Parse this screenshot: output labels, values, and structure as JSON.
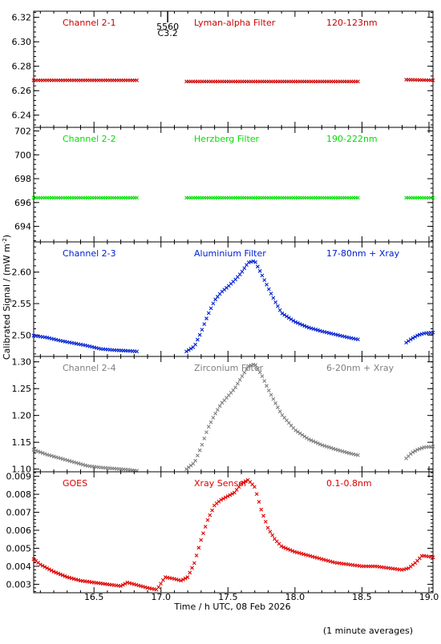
{
  "figure": {
    "xlabel": "Time / h UTC, 08 Feb 2026",
    "ylabel": "Calibrated Signal / (mW m",
    "ylabel_sup": "-2",
    "ylabel_close": ")",
    "footnote": "(1 minute averages)",
    "flare_marker": {
      "x": 17.05,
      "label_top": "5560",
      "label_bottom": "C3.2"
    }
  },
  "chart_data": [
    {
      "type": "scatter",
      "channel": "Channel 2-1",
      "filter": "Lyman-alpha Filter",
      "band": "120-123nm",
      "color": "#cc0000",
      "xlim": [
        16.05,
        19.03
      ],
      "ylim": [
        6.23,
        6.325
      ],
      "yticks": [
        6.24,
        6.26,
        6.28,
        6.3,
        6.32
      ],
      "ytick_labels": [
        "6.24",
        "6.26",
        "6.28",
        "6.30",
        "6.32"
      ],
      "series": [
        {
          "x": [
            16.05,
            16.82
          ],
          "y": [
            6.2685,
            6.2685
          ]
        },
        {
          "x": [
            17.19,
            18.47
          ],
          "y": [
            6.2675,
            6.2675
          ]
        },
        {
          "x": [
            18.83,
            19.03
          ],
          "y": [
            6.269,
            6.2685
          ]
        }
      ]
    },
    {
      "type": "scatter",
      "channel": "Channel 2-2",
      "filter": "Herzberg Filter",
      "band": "190-222nm",
      "color": "#00e000",
      "xlim": [
        16.05,
        19.03
      ],
      "ylim": [
        692.7,
        702.3
      ],
      "yticks": [
        694,
        696,
        698,
        700,
        702
      ],
      "ytick_labels": [
        "694",
        "696",
        "698",
        "700",
        "702"
      ],
      "series": [
        {
          "x": [
            16.05,
            16.82
          ],
          "y": [
            696.4,
            696.4
          ]
        },
        {
          "x": [
            17.19,
            18.47
          ],
          "y": [
            696.4,
            696.4
          ]
        },
        {
          "x": [
            18.83,
            19.03
          ],
          "y": [
            696.4,
            696.4
          ]
        }
      ]
    },
    {
      "type": "scatter",
      "channel": "Channel 2-3",
      "filter": "Aluminium Filter",
      "band": "17-80nm + Xray",
      "color": "#0020d0",
      "xlim": [
        16.05,
        19.03
      ],
      "ylim": [
        2.466,
        2.648
      ],
      "yticks": [
        2.5,
        2.55,
        2.6
      ],
      "ytick_labels": [
        "2.50",
        "2.55",
        "2.60"
      ],
      "series": [
        {
          "x": [
            16.05,
            16.15,
            16.25,
            16.35,
            16.45,
            16.55,
            16.65,
            16.75,
            16.82
          ],
          "y": [
            2.499,
            2.496,
            2.491,
            2.487,
            2.483,
            2.478,
            2.476,
            2.475,
            2.474
          ]
        },
        {
          "x": [
            17.19,
            17.25,
            17.3,
            17.35,
            17.4,
            17.45,
            17.5,
            17.55,
            17.6,
            17.65,
            17.7,
            17.75,
            17.8,
            17.85,
            17.9,
            18.0,
            18.1,
            18.2,
            18.3,
            18.4,
            18.47
          ],
          "y": [
            2.474,
            2.482,
            2.505,
            2.532,
            2.555,
            2.568,
            2.577,
            2.587,
            2.599,
            2.615,
            2.618,
            2.597,
            2.575,
            2.554,
            2.535,
            2.521,
            2.512,
            2.506,
            2.501,
            2.496,
            2.493
          ]
        },
        {
          "x": [
            18.83,
            18.87,
            18.92,
            18.97,
            19.03
          ],
          "y": [
            2.488,
            2.494,
            2.5,
            2.503,
            2.504
          ]
        }
      ]
    },
    {
      "type": "scatter",
      "channel": "Channel 2-4",
      "filter": "Zirconium Filter",
      "band": "6-20nm + Xray",
      "color": "#7f7f7f",
      "xlim": [
        16.05,
        19.03
      ],
      "ylim": [
        1.095,
        1.31
      ],
      "yticks": [
        1.1,
        1.15,
        1.2,
        1.25,
        1.3
      ],
      "ytick_labels": [
        "1.10",
        "1.15",
        "1.20",
        "1.25",
        "1.30"
      ],
      "series": [
        {
          "x": [
            16.05,
            16.15,
            16.25,
            16.35,
            16.45,
            16.55,
            16.65,
            16.75,
            16.82
          ],
          "y": [
            1.136,
            1.127,
            1.12,
            1.113,
            1.106,
            1.103,
            1.101,
            1.099,
            1.097
          ]
        },
        {
          "x": [
            17.19,
            17.25,
            17.3,
            17.35,
            17.4,
            17.45,
            17.5,
            17.55,
            17.6,
            17.65,
            17.7,
            17.75,
            17.8,
            17.85,
            17.9,
            18.0,
            18.1,
            18.2,
            18.3,
            18.4,
            18.47
          ],
          "y": [
            1.1,
            1.112,
            1.141,
            1.176,
            1.201,
            1.222,
            1.236,
            1.25,
            1.271,
            1.291,
            1.296,
            1.276,
            1.249,
            1.225,
            1.202,
            1.173,
            1.156,
            1.145,
            1.137,
            1.13,
            1.126
          ]
        },
        {
          "x": [
            18.83,
            18.87,
            18.92,
            18.97,
            19.03
          ],
          "y": [
            1.12,
            1.13,
            1.137,
            1.141,
            1.142
          ]
        }
      ]
    },
    {
      "type": "scatter",
      "channel": "GOES",
      "filter": "Xray Sensor",
      "band": "0.1-0.8nm",
      "color": "#e00000",
      "xlim": [
        16.05,
        19.03
      ],
      "ylim": [
        0.00253,
        0.00925
      ],
      "yticks": [
        0.003,
        0.004,
        0.005,
        0.006,
        0.007,
        0.008,
        0.009
      ],
      "ytick_labels": [
        "0.003",
        "0.004",
        "0.005",
        "0.006",
        "0.007",
        "0.008",
        "0.009"
      ],
      "series": [
        {
          "x": [
            16.05,
            16.1,
            16.2,
            16.3,
            16.4,
            16.5,
            16.6,
            16.7,
            16.75,
            16.8,
            16.9,
            16.97,
            17.03,
            17.1,
            17.15,
            17.2,
            17.25,
            17.3,
            17.35,
            17.4,
            17.45,
            17.5,
            17.55,
            17.6,
            17.65,
            17.7,
            17.75,
            17.8,
            17.85,
            17.9,
            18.0,
            18.1,
            18.2,
            18.3,
            18.4,
            18.5,
            18.6,
            18.7,
            18.8,
            18.85,
            18.9,
            18.95,
            19.03
          ],
          "y": [
            0.0044,
            0.0041,
            0.0037,
            0.0034,
            0.0032,
            0.0031,
            0.003,
            0.0029,
            0.0031,
            0.003,
            0.0028,
            0.0027,
            0.0034,
            0.0033,
            0.0032,
            0.0034,
            0.0042,
            0.0055,
            0.0066,
            0.0074,
            0.0077,
            0.0079,
            0.0081,
            0.0086,
            0.0088,
            0.0084,
            0.0071,
            0.0061,
            0.0055,
            0.0051,
            0.0048,
            0.0046,
            0.0044,
            0.0042,
            0.0041,
            0.004,
            0.004,
            0.0039,
            0.0038,
            0.0039,
            0.0042,
            0.0046,
            0.0045
          ]
        }
      ]
    }
  ]
}
